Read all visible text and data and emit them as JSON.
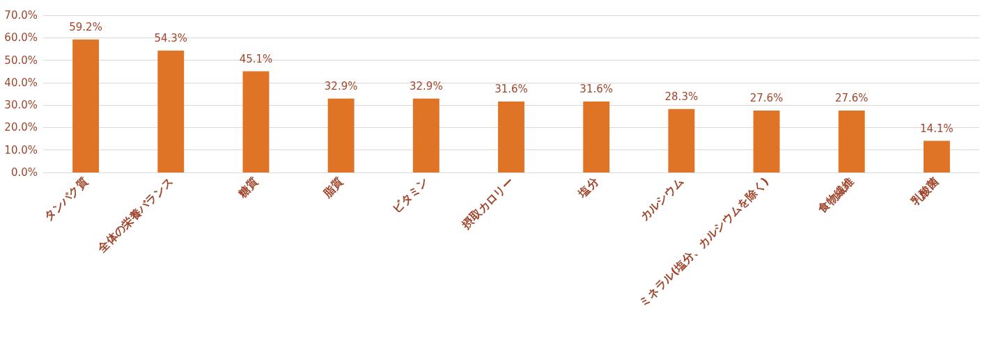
{
  "chart_data": {
    "type": "bar",
    "categories": [
      "タンパク質",
      "全体の栄養バランス",
      "糖質",
      "脂質",
      "ビタミン",
      "摂取カロリー",
      "塩分",
      "カルシウム",
      "ミネラル(塩分、カルシウムを除く)",
      "食物繊維",
      "乳酸菌"
    ],
    "values": [
      59.2,
      54.3,
      45.1,
      32.9,
      32.9,
      31.6,
      31.6,
      28.3,
      27.6,
      27.6,
      14.1
    ],
    "value_labels": [
      "59.2%",
      "54.3%",
      "45.1%",
      "32.9%",
      "32.9%",
      "31.6%",
      "31.6%",
      "28.3%",
      "27.6%",
      "27.6%",
      "14.1%"
    ],
    "color": "#e07426",
    "ylim": [
      0,
      70
    ],
    "yticks": [
      {
        "value": 0,
        "label": "0.0%"
      },
      {
        "value": 10,
        "label": "10.0%"
      },
      {
        "value": 20,
        "label": "20.0%"
      },
      {
        "value": 30,
        "label": "30.0%"
      },
      {
        "value": 40,
        "label": "40.0%"
      },
      {
        "value": 50,
        "label": "50.0%"
      },
      {
        "value": 60,
        "label": "60.0%"
      },
      {
        "value": 70,
        "label": "70.0%"
      }
    ],
    "grid": "y"
  }
}
